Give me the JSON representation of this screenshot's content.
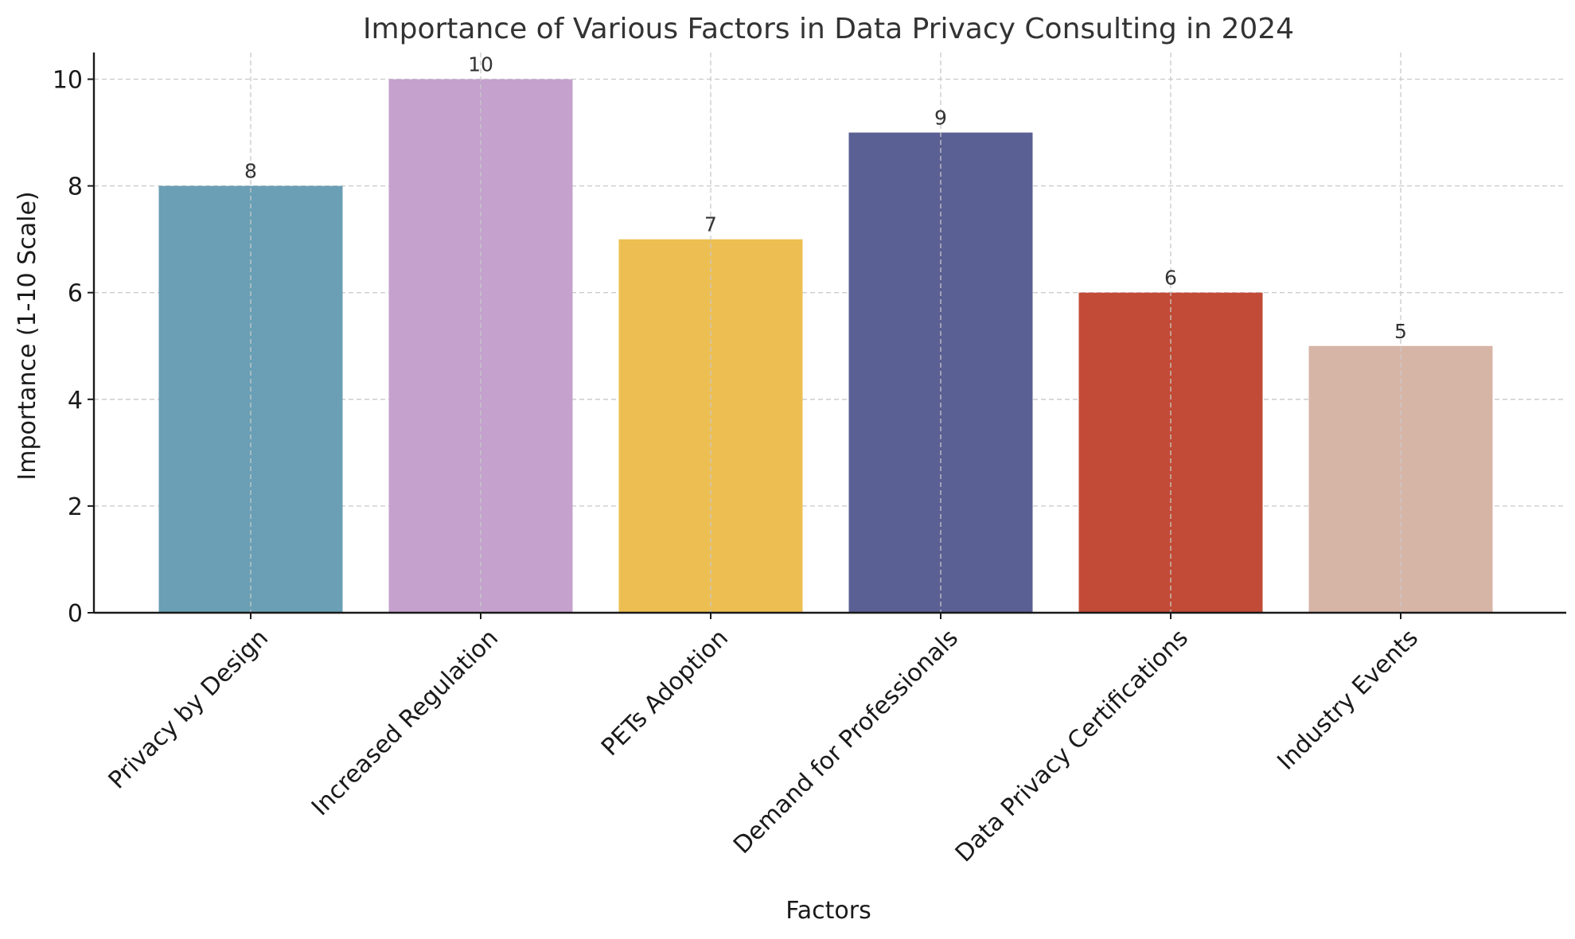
{
  "chart_data": {
    "type": "bar",
    "title": "Importance of Various Factors in Data Privacy Consulting in 2024",
    "xlabel": "Factors",
    "ylabel": "Importance (1-10 Scale)",
    "categories": [
      "Privacy by Design",
      "Increased Regulation",
      "PETs Adoption",
      "Demand for Professionals",
      "Data Privacy Certifications",
      "Industry Events"
    ],
    "values": [
      8,
      10,
      7,
      9,
      6,
      5
    ],
    "colors": [
      "#6a9fb5",
      "#c4a2cd",
      "#edbf52",
      "#5a5f94",
      "#c24b37",
      "#d7b5a6"
    ],
    "ylim": [
      0,
      10.5
    ],
    "yticks": [
      0,
      2,
      4,
      6,
      8,
      10
    ],
    "grid": true,
    "legend": "none"
  }
}
